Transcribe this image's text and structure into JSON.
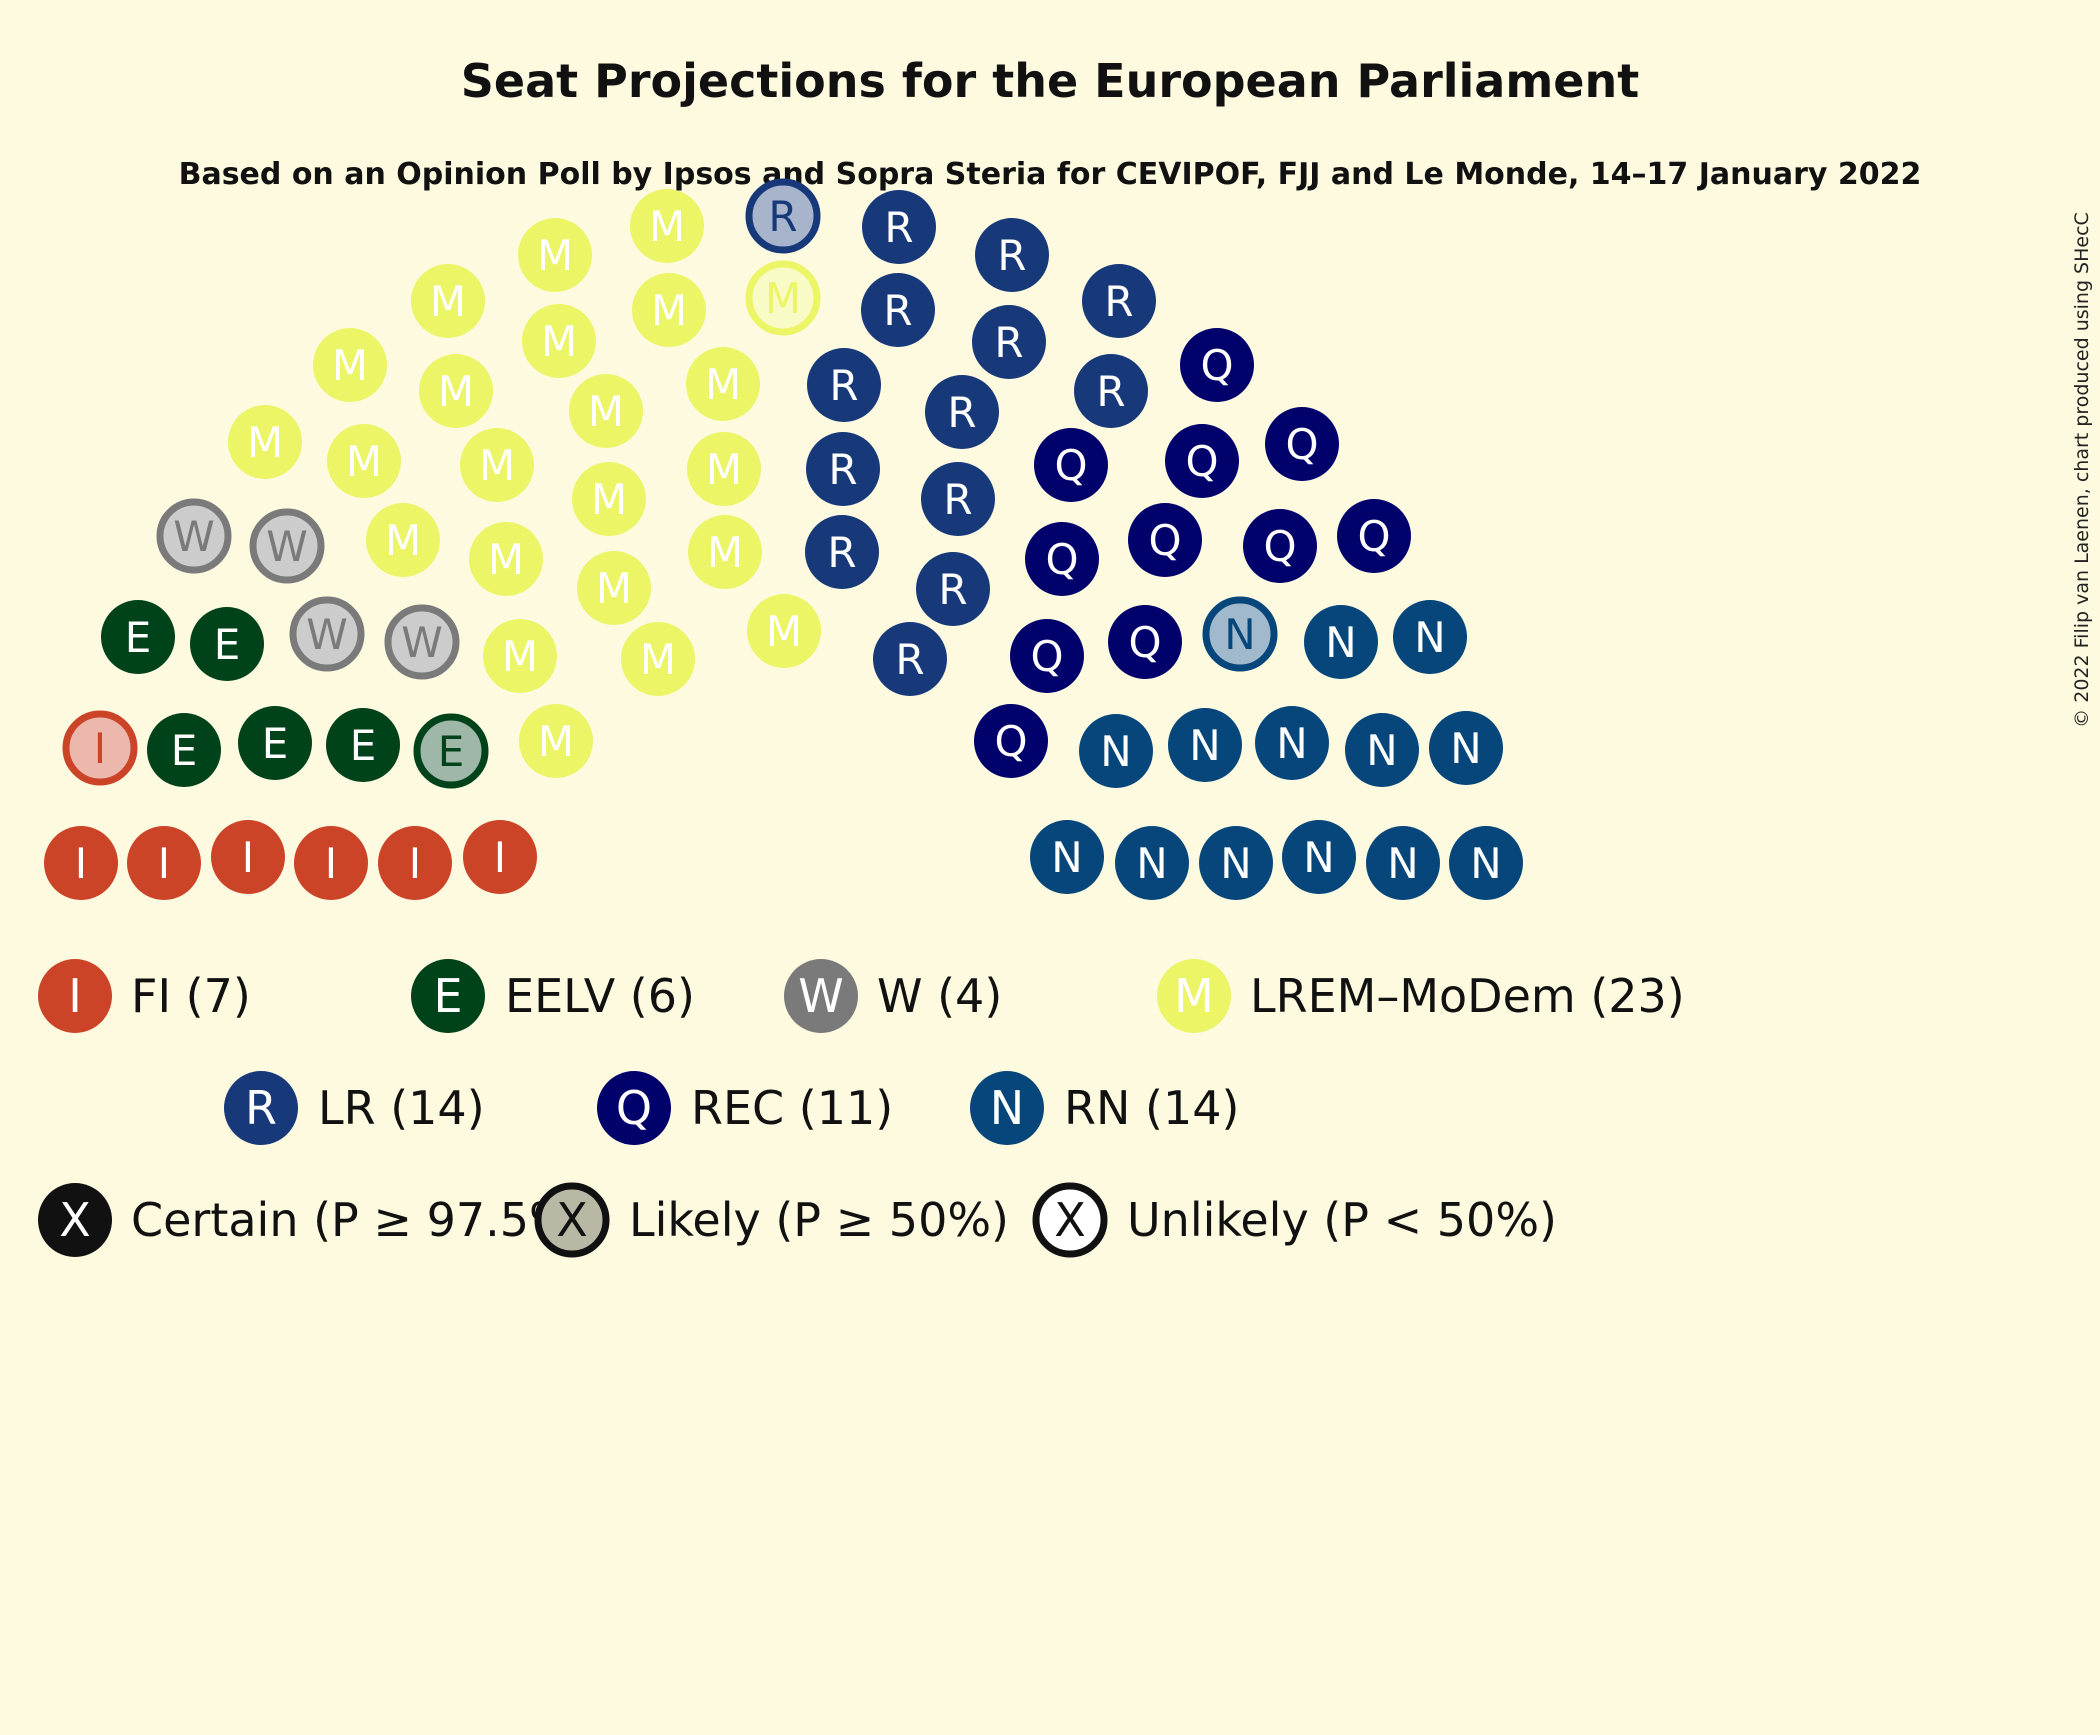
{
  "chart_data": {
    "type": "parliament",
    "title": "Seat Projections for the European Parliament",
    "subtitle": "Based on an Opinion Poll by Ipsos and Sopra Steria for CEVIPOF, FJJ and Le Monde, 14–17 January 2022",
    "copyright": "© 2022 Filip van Laenen, chart produced using SHecC",
    "parties": [
      {
        "letter": "I",
        "name": "FI",
        "seats": 7,
        "color": "#cc4428",
        "text_color": "#ffffff",
        "likely": 1,
        "label": "FI (7)"
      },
      {
        "letter": "E",
        "name": "EELV",
        "seats": 6,
        "color": "#00421a",
        "text_color": "#ffffff",
        "likely": 1,
        "label": "EELV (6)"
      },
      {
        "letter": "W",
        "name": "W",
        "seats": 4,
        "color": "#7a7a7a",
        "text_color": "#ffffff",
        "likely": 4,
        "label": "W (4)"
      },
      {
        "letter": "M",
        "name": "LREM–MoDem",
        "seats": 23,
        "color": "#ecf566",
        "text_color": "#ffffff",
        "likely": 1,
        "label": "LREM–MoDem (23)"
      },
      {
        "letter": "R",
        "name": "LR",
        "seats": 14,
        "color": "#17397a",
        "text_color": "#ffffff",
        "likely": 1,
        "label": "LR (14)"
      },
      {
        "letter": "Q",
        "name": "REC",
        "seats": 11,
        "color": "#01016b",
        "text_color": "#ffffff",
        "likely": 0,
        "label": "REC (11)"
      },
      {
        "letter": "N",
        "name": "RN",
        "seats": 14,
        "color": "#06467a",
        "text_color": "#ffffff",
        "likely": 1,
        "label": "RN (14)"
      }
    ],
    "certainty_legend": [
      {
        "letter": "X",
        "label": "Certain (P ≥ 97.5%)",
        "style": "certain"
      },
      {
        "letter": "X",
        "label": "Likely (P ≥ 50%)",
        "style": "likely"
      },
      {
        "letter": "X",
        "label": "Unlikely (P < 50%)",
        "style": "unlikely"
      }
    ],
    "colors": {
      "background": "#fdfae0",
      "likely_fill_gray": "#b8b8a4",
      "black": "#111111"
    }
  }
}
